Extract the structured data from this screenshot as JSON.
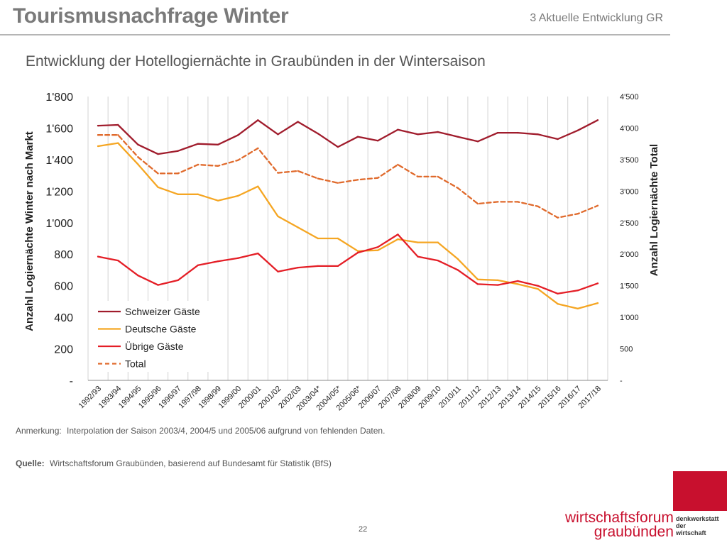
{
  "header": {
    "title": "Tourismusnachfrage Winter",
    "section": "3 Aktuelle Entwicklung GR"
  },
  "subtitle": "Entwicklung der Hotellogiernächte in Graubünden in der Wintersaison",
  "chart_data": {
    "type": "line",
    "categories": [
      "1992/93",
      "1993/94",
      "1994/95",
      "1995/96",
      "1996/97",
      "1997/98",
      "1998/99",
      "1999/00",
      "2000/01",
      "2001/02",
      "2002/03",
      "2003/04*",
      "2004/05*",
      "2005/06*",
      "2006/07",
      "2007/08",
      "2008/09",
      "2009/10",
      "2010/11",
      "2011/12",
      "2012/13",
      "2013/14",
      "2014/15",
      "2015/16",
      "2016/17",
      "2017/18"
    ],
    "ylabel": "Anzahl Logiernächte Winter nach Markt",
    "y2label": "Anzahl Logiernächte Total",
    "ylim": [
      0,
      1800
    ],
    "y2lim": [
      0,
      4500
    ],
    "y_ticks": [
      "-",
      "200",
      "400",
      "600",
      "800",
      "1'000",
      "1'200",
      "1'400",
      "1'600",
      "1'800"
    ],
    "y2_ticks": [
      "-",
      "500",
      "1'000",
      "1'500",
      "2'000",
      "2'500",
      "3'000",
      "3'500",
      "4'000",
      "4'500"
    ],
    "grid": "vertical",
    "legend_position": "bottom-left",
    "series": [
      {
        "name": "Schweizer Gäste",
        "axis": "left",
        "color": "#a01c2c",
        "dash": false,
        "values": [
          1615,
          1620,
          1495,
          1435,
          1455,
          1500,
          1495,
          1555,
          1650,
          1560,
          1640,
          1565,
          1480,
          1545,
          1520,
          1590,
          1560,
          1575,
          1545,
          1515,
          1570,
          1570,
          1560,
          1530,
          1585,
          1650
        ]
      },
      {
        "name": "Deutsche Gäste",
        "axis": "left",
        "color": "#f5a623",
        "dash": false,
        "values": [
          1485,
          1505,
          1370,
          1225,
          1180,
          1180,
          1140,
          1170,
          1230,
          1040,
          970,
          900,
          900,
          820,
          825,
          895,
          875,
          875,
          770,
          640,
          635,
          610,
          580,
          485,
          455,
          490
        ]
      },
      {
        "name": "Übrige Gäste",
        "axis": "left",
        "color": "#e41e26",
        "dash": false,
        "values": [
          785,
          760,
          665,
          605,
          635,
          730,
          755,
          775,
          805,
          690,
          715,
          725,
          725,
          810,
          845,
          925,
          785,
          760,
          700,
          610,
          605,
          630,
          600,
          550,
          570,
          615
        ]
      },
      {
        "name": "Total",
        "axis": "right",
        "color": "#e06a2c",
        "dash": true,
        "values": [
          3890,
          3890,
          3540,
          3280,
          3280,
          3420,
          3400,
          3490,
          3680,
          3290,
          3320,
          3200,
          3130,
          3180,
          3210,
          3420,
          3230,
          3230,
          3050,
          2800,
          2830,
          2830,
          2760,
          2580,
          2640,
          2770
        ]
      }
    ]
  },
  "note": {
    "label": "Anmerkung:",
    "text": "Interpolation der Saison 2003/4, 2004/5 und 2005/06 aufgrund von fehlenden Daten."
  },
  "source": {
    "label": "Quelle:",
    "text": "Wirtschaftsforum Graubünden, basierend auf Bundesamt für Statistik (BfS)"
  },
  "page_number": "22",
  "logo": {
    "line1": "wirtschaftsforum",
    "line2": "graubünden",
    "sub1": "denkwerkstatt",
    "sub2": "der",
    "sub3": "wirtschaft"
  },
  "colors": {
    "brand_red": "#c8102e",
    "heading_gray": "#7a7a7a"
  }
}
